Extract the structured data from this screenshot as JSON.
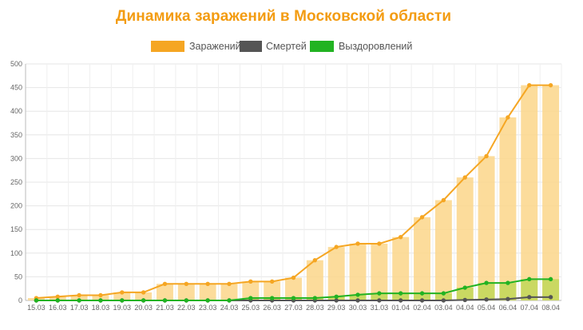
{
  "chart_data": {
    "type": "bar",
    "title": "Динамика заражений в Московской области",
    "legend_position": "top",
    "grid": true,
    "ylim": [
      0,
      500
    ],
    "yticks": [
      0,
      50,
      100,
      150,
      200,
      250,
      300,
      350,
      400,
      450,
      500
    ],
    "categories": [
      "15.03",
      "16.03",
      "17.03",
      "18.03",
      "19.03",
      "20.03",
      "21.03",
      "22.03",
      "23.03",
      "24.03",
      "25.03",
      "26.03",
      "27.03",
      "28.03",
      "29.03",
      "30.03",
      "31.03",
      "01.04",
      "02.04",
      "03.04",
      "04.04",
      "05.04",
      "06.04",
      "07.04",
      "08.04"
    ],
    "series": [
      {
        "name": "Заражений",
        "color": "#F5A623",
        "fill": "#FBD68A",
        "render": "bar+line",
        "values": [
          5,
          8,
          11,
          11,
          17,
          17,
          35,
          35,
          35,
          35,
          40,
          40,
          48,
          85,
          113,
          120,
          120,
          134,
          176,
          212,
          260,
          305,
          387,
          455,
          455
        ]
      },
      {
        "name": "Смертей",
        "color": "#555555",
        "fill": "#555555",
        "render": "line",
        "values": [
          0,
          0,
          0,
          0,
          0,
          0,
          0,
          0,
          0,
          0,
          0,
          0,
          0,
          0,
          0,
          0,
          0,
          0,
          0,
          0,
          1,
          2,
          3,
          7,
          7
        ]
      },
      {
        "name": "Выздоровлений",
        "color": "#22B322",
        "fill": "#C7D75F",
        "render": "bar+line",
        "values": [
          0,
          0,
          0,
          0,
          0,
          0,
          0,
          0,
          0,
          0,
          5,
          5,
          5,
          5,
          8,
          12,
          15,
          15,
          15,
          15,
          27,
          37,
          37,
          45,
          45
        ]
      }
    ]
  }
}
